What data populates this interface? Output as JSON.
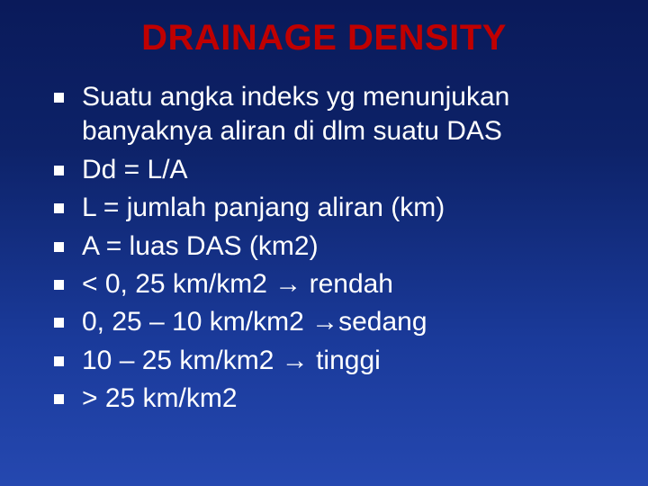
{
  "title": "DRAINAGE DENSITY",
  "title_color": "#c00000",
  "title_fontsize": 40,
  "title_font": "Arial",
  "body_color": "#ffffff",
  "body_fontsize": 30,
  "body_font": "Verdana",
  "bullet_color": "#ffffff",
  "bullet_size": 11,
  "background_gradient": [
    "#0a1a5a",
    "#0d2268",
    "#1a3a9a",
    "#2548b0"
  ],
  "items": [
    "Suatu angka indeks yg menunjukan banyaknya aliran di dlm suatu DAS",
    "Dd = L/A",
    "L = jumlah panjang aliran (km)",
    "A = luas DAS (km2)",
    "< 0, 25 km/km2 → rendah",
    "0, 25 – 10 km/km2 →sedang",
    "10 – 25 km/km2 → tinggi",
    "> 25 km/km2"
  ]
}
